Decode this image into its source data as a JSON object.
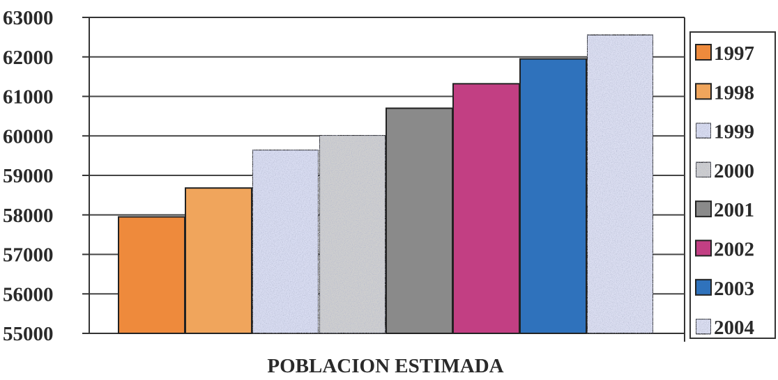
{
  "chart_data": {
    "type": "bar",
    "categories": [
      "1997",
      "1998",
      "1999",
      "2000",
      "2001",
      "2002",
      "2003",
      "2004"
    ],
    "values": [
      57950,
      58680,
      59650,
      60020,
      60700,
      61320,
      61950,
      62560
    ],
    "xlabel": "POBLACION ESTIMADA",
    "ylabel": "",
    "ylim": [
      55000,
      63000
    ],
    "yticks": [
      "55000",
      "56000",
      "57000",
      "58000",
      "59000",
      "60000",
      "61000",
      "62000",
      "63000"
    ],
    "grid": true,
    "legend": "right",
    "colors": [
      "#ee8a3c",
      "#f0a55c",
      "#d9ddf2",
      "#cfcfcf",
      "#8a8a8a",
      "#c23f83",
      "#2f72bc",
      "#dcdff2"
    ],
    "textures": [
      "none",
      "none",
      "speckle",
      "speckle",
      "none",
      "none",
      "none",
      "speckle"
    ]
  }
}
